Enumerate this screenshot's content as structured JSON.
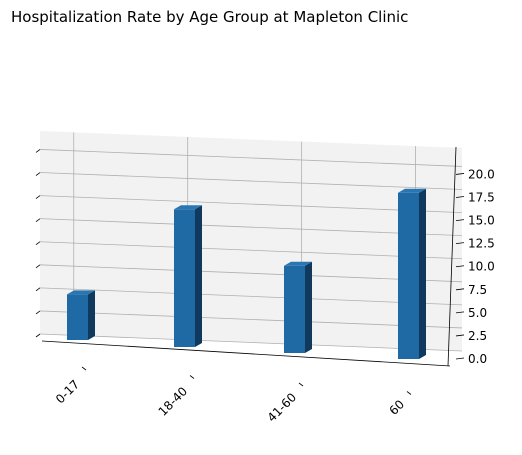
{
  "chart_data": {
    "type": "bar",
    "title": "Hospitalization Rate by Age Group at Mapleton Clinic",
    "categories": [
      "0-17",
      "18-40",
      "41-60",
      "60"
    ],
    "values": [
      5.6,
      16.9,
      10.7,
      20.4
    ],
    "xlabel": "",
    "ylabel": "",
    "ylim": [
      0,
      22
    ],
    "yticks": [
      "0.0",
      "2.5",
      "5.0",
      "7.5",
      "10.0",
      "12.5",
      "15.0",
      "17.5",
      "20.0"
    ],
    "grid": true,
    "projection": "3d",
    "colors": {
      "bar_front": "#1f6aa5",
      "bar_top": "#2a76b3",
      "bar_side": "#0f3a5e",
      "pane": "#f2f2f2"
    }
  }
}
